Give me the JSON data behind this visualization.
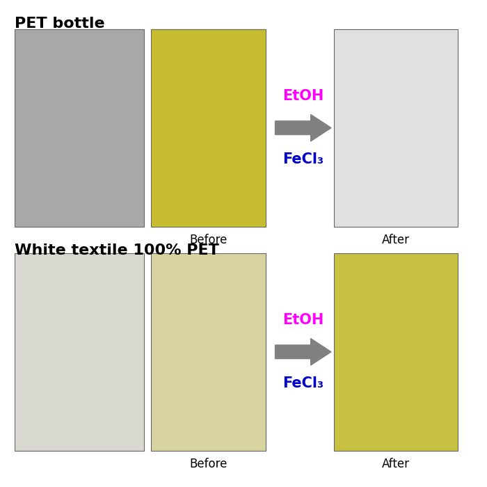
{
  "title_top": "PET bottle",
  "title_bottom": "White textile 100% PET",
  "label_before": "Before",
  "label_after": "After",
  "etoh_text": "EtOH",
  "fecl3_text": "FeCl₃",
  "etoh_color": "#FF00FF",
  "fecl3_color": "#0000CD",
  "arrow_color": "#808080",
  "bg_color": "#FFFFFF",
  "title_fontsize": 16,
  "label_fontsize": 12,
  "reagent_fontsize": 15,
  "figure_width": 7.0,
  "figure_height": 7.0,
  "photo_colors": {
    "top_left1": "#A8A8A8",
    "top_left2": "#C8BC30",
    "top_right": "#E0E0E0",
    "bottom_left1": "#D8D8D0",
    "bottom_left2": "#D8D4A0",
    "bottom_right": "#C8C040"
  }
}
